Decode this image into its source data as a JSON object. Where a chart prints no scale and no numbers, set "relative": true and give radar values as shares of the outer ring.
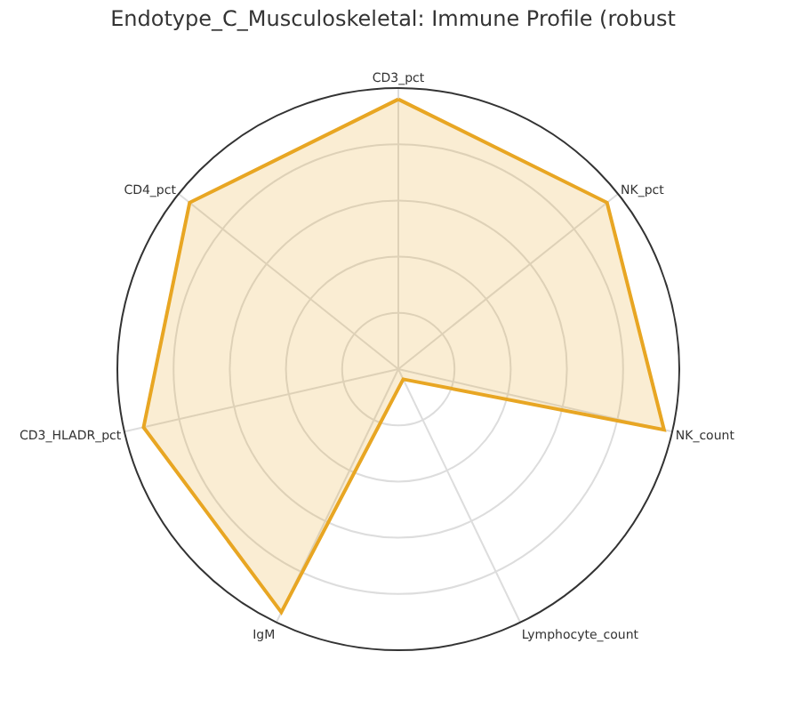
{
  "chart_data": {
    "type": "radar",
    "title": "Endotype_C_Musculoskeletal: Immune Profile (robust",
    "categories": [
      "CD3_pct",
      "NK_pct",
      "NK_count",
      "Lymphocyte_count",
      "IgM",
      "CD3_HLADR_pct",
      "CD4_pct"
    ],
    "relative": true,
    "grid": true,
    "marker": "none",
    "series": [
      {
        "color": "#e8a623",
        "values": [
          0.96,
          0.95,
          0.97,
          0.04,
          0.96,
          0.93,
          0.95
        ]
      }
    ]
  }
}
